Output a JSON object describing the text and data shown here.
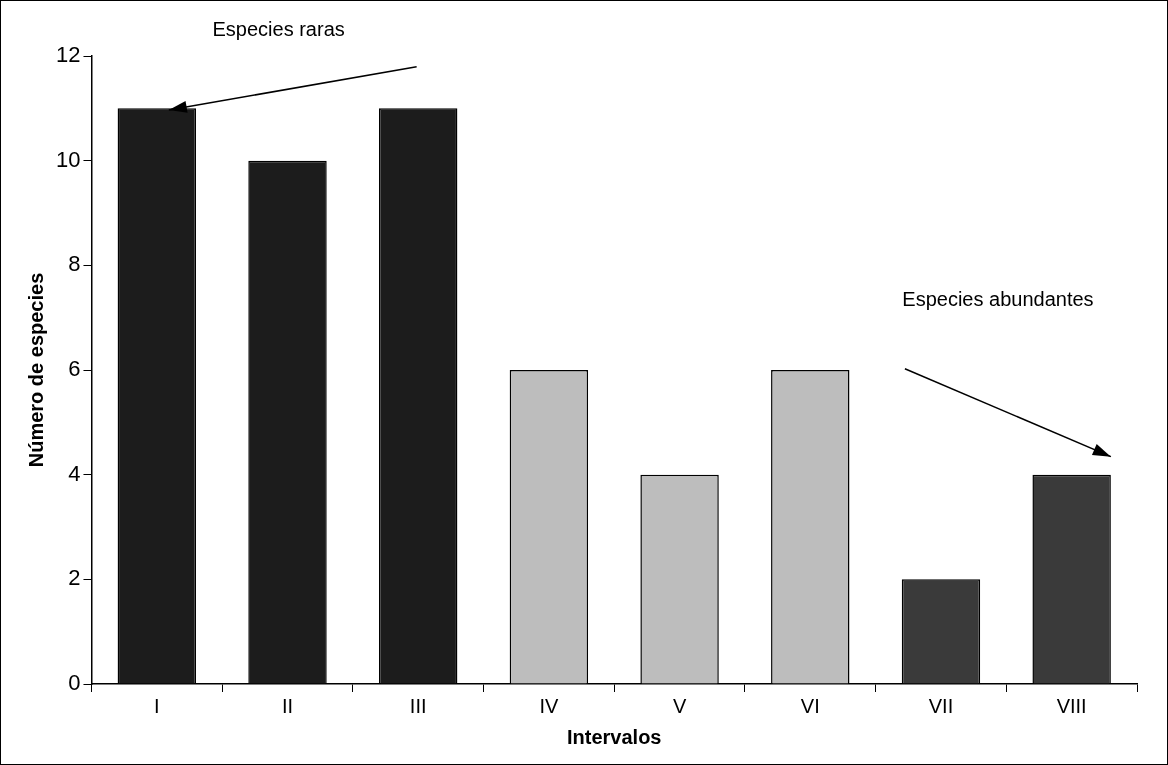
{
  "chart_data": {
    "type": "bar",
    "xlabel": "Intervalos",
    "ylabel": "Número de especies",
    "categories": [
      "I",
      "II",
      "III",
      "IV",
      "V",
      "VI",
      "VII",
      "VIII"
    ],
    "values": [
      11,
      10,
      11,
      6,
      4,
      6,
      2,
      4
    ],
    "colors": [
      "#1c1c1c",
      "#1c1c1c",
      "#1c1c1c",
      "#bdbdbd",
      "#bdbdbd",
      "#bdbdbd",
      "#3a3a3a",
      "#3a3a3a"
    ],
    "ylim": [
      0,
      12
    ],
    "yticks": [
      0,
      2,
      4,
      6,
      8,
      10,
      12
    ],
    "grid": false,
    "legend": false,
    "annotations": [
      "Especies raras",
      "Especies abundantes"
    ]
  }
}
